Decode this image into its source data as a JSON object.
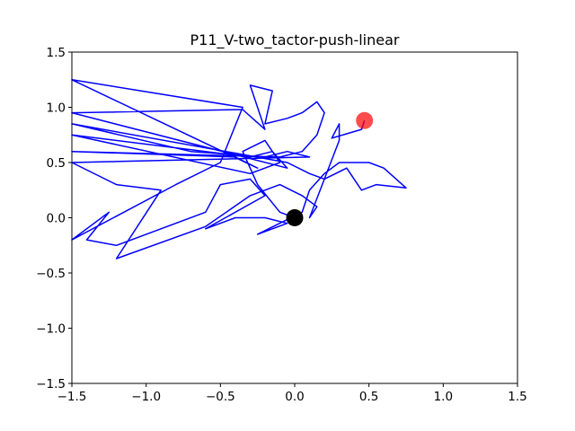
{
  "chart_data": {
    "type": "line",
    "title": "P11_V-two_tactor-push-linear",
    "xlim": [
      -1.5,
      1.5
    ],
    "ylim": [
      -1.5,
      1.5
    ],
    "xticks": [
      {
        "value": -1.5,
        "label": "−1.5"
      },
      {
        "value": -1.0,
        "label": "−1.0"
      },
      {
        "value": -0.5,
        "label": "−0.5"
      },
      {
        "value": 0,
        "label": "0.0"
      },
      0.5,
      {
        "value": 1,
        "label": "1.0"
      },
      1.5
    ],
    "yticks": [
      {
        "value": -1.5,
        "label": "−1.5"
      },
      {
        "value": -1.0,
        "label": "−1.0"
      },
      {
        "value": -0.5,
        "label": "−0.5"
      },
      {
        "value": 0,
        "label": "0.0"
      },
      0.5,
      {
        "value": 1,
        "label": "1.0"
      },
      1.5
    ],
    "series": [
      {
        "color": "#0000ff",
        "x": [
          0,
          -0.1,
          -0.25,
          -0.35,
          -0.2,
          -0.1,
          -0.3,
          -1.5,
          -0.3,
          -0.15,
          -0.05,
          -1.5,
          -0.35,
          -0.2,
          -0.3,
          -0.15,
          -0.2,
          -0.05,
          0.05,
          0.15,
          0.2,
          0.15,
          0.05,
          -0.1,
          -1.5,
          -0.4,
          -0.25,
          -1.5,
          -0.35,
          -0.5,
          -0.8,
          -1.5,
          -1.25,
          -1.4,
          -1.2,
          -0.6,
          -0.5,
          -0.3,
          -0.2,
          -0.6,
          -0.4,
          -0.2,
          -0.05,
          -0.25,
          0.05,
          0.1,
          0.2,
          0.3,
          0.5,
          0.6,
          0.75,
          0.55,
          0.45,
          0.35,
          0.2,
          0.1,
          -0.05,
          -1.5,
          -0.7,
          -0.2,
          -0.05,
          0.1,
          -1.5,
          -1.2,
          -0.9,
          -1.2,
          -0.6,
          -0.3,
          -0.1,
          0.05,
          0.15,
          0.1,
          0.3,
          0.3,
          0.25,
          0.45,
          0.47
        ],
        "y": [
          0,
          0.05,
          0.3,
          0.6,
          0.7,
          0.5,
          0.4,
          0.75,
          0.55,
          0.6,
          0.45,
          0.95,
          0.98,
          0.8,
          1.2,
          1.15,
          0.85,
          0.9,
          0.95,
          1.05,
          0.95,
          0.75,
          0.6,
          0.55,
          0.6,
          0.55,
          0.45,
          1.25,
          1.0,
          0.5,
          0.3,
          -0.2,
          0.05,
          -0.2,
          -0.25,
          0.05,
          0.3,
          0.35,
          0.2,
          -0.1,
          0.0,
          0.0,
          -0.05,
          -0.15,
          0.05,
          0.25,
          0.4,
          0.5,
          0.5,
          0.45,
          0.27,
          0.3,
          0.25,
          0.45,
          0.35,
          0.4,
          0.5,
          0.85,
          0.6,
          0.55,
          0.6,
          0.55,
          0.5,
          0.3,
          0.25,
          -0.37,
          -0.08,
          0.2,
          0.3,
          0.2,
          0.1,
          0.0,
          0.7,
          0.85,
          0.72,
          0.8,
          0.88
        ]
      }
    ],
    "markers": [
      {
        "x": 0,
        "y": 0,
        "color": "#000000",
        "alpha": 1
      },
      {
        "x": 0.47,
        "y": 0.88,
        "color": "#ff0000",
        "alpha": 0.7
      }
    ]
  }
}
